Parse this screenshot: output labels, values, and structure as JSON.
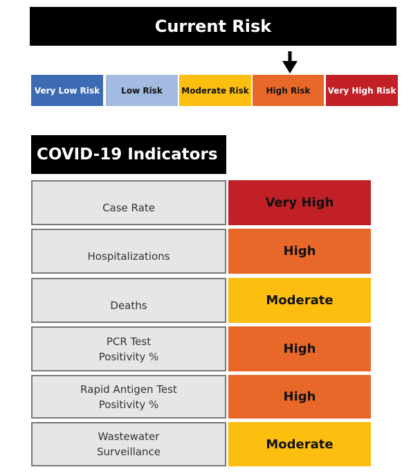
{
  "current_risk": {
    "title": "Current Risk",
    "selected": "High Risk",
    "levels": [
      {
        "label": "Very Low Risk",
        "color": "#3d6bb3",
        "text_color": "#ffffff"
      },
      {
        "label": "Low Risk",
        "color": "#a3bbe0",
        "text_color": "#111111"
      },
      {
        "label": "Moderate Risk",
        "color": "#fcbf10",
        "text_color": "#111111"
      },
      {
        "label": "High Risk",
        "color": "#e8682a",
        "text_color": "#111111"
      },
      {
        "label": "Very High Risk",
        "color": "#c02026",
        "text_color": "#ffffff"
      }
    ]
  },
  "indicators": {
    "title": "COVID-19 Indicators",
    "rows": [
      {
        "label": "Case Rate",
        "value": "Very High",
        "color": "#c02026"
      },
      {
        "label": "Hospitalizations",
        "value": "High",
        "color": "#e8682a"
      },
      {
        "label": "Deaths",
        "value": "Moderate",
        "color": "#fcbf10"
      },
      {
        "label": "PCR Test\nPositivity %",
        "value": "High",
        "color": "#e8682a"
      },
      {
        "label": "Rapid Antigen Test\nPositivity %",
        "value": "High",
        "color": "#e8682a"
      },
      {
        "label": "Wastewater\nSurveillance",
        "value": "Moderate",
        "color": "#fcbf10"
      }
    ]
  }
}
